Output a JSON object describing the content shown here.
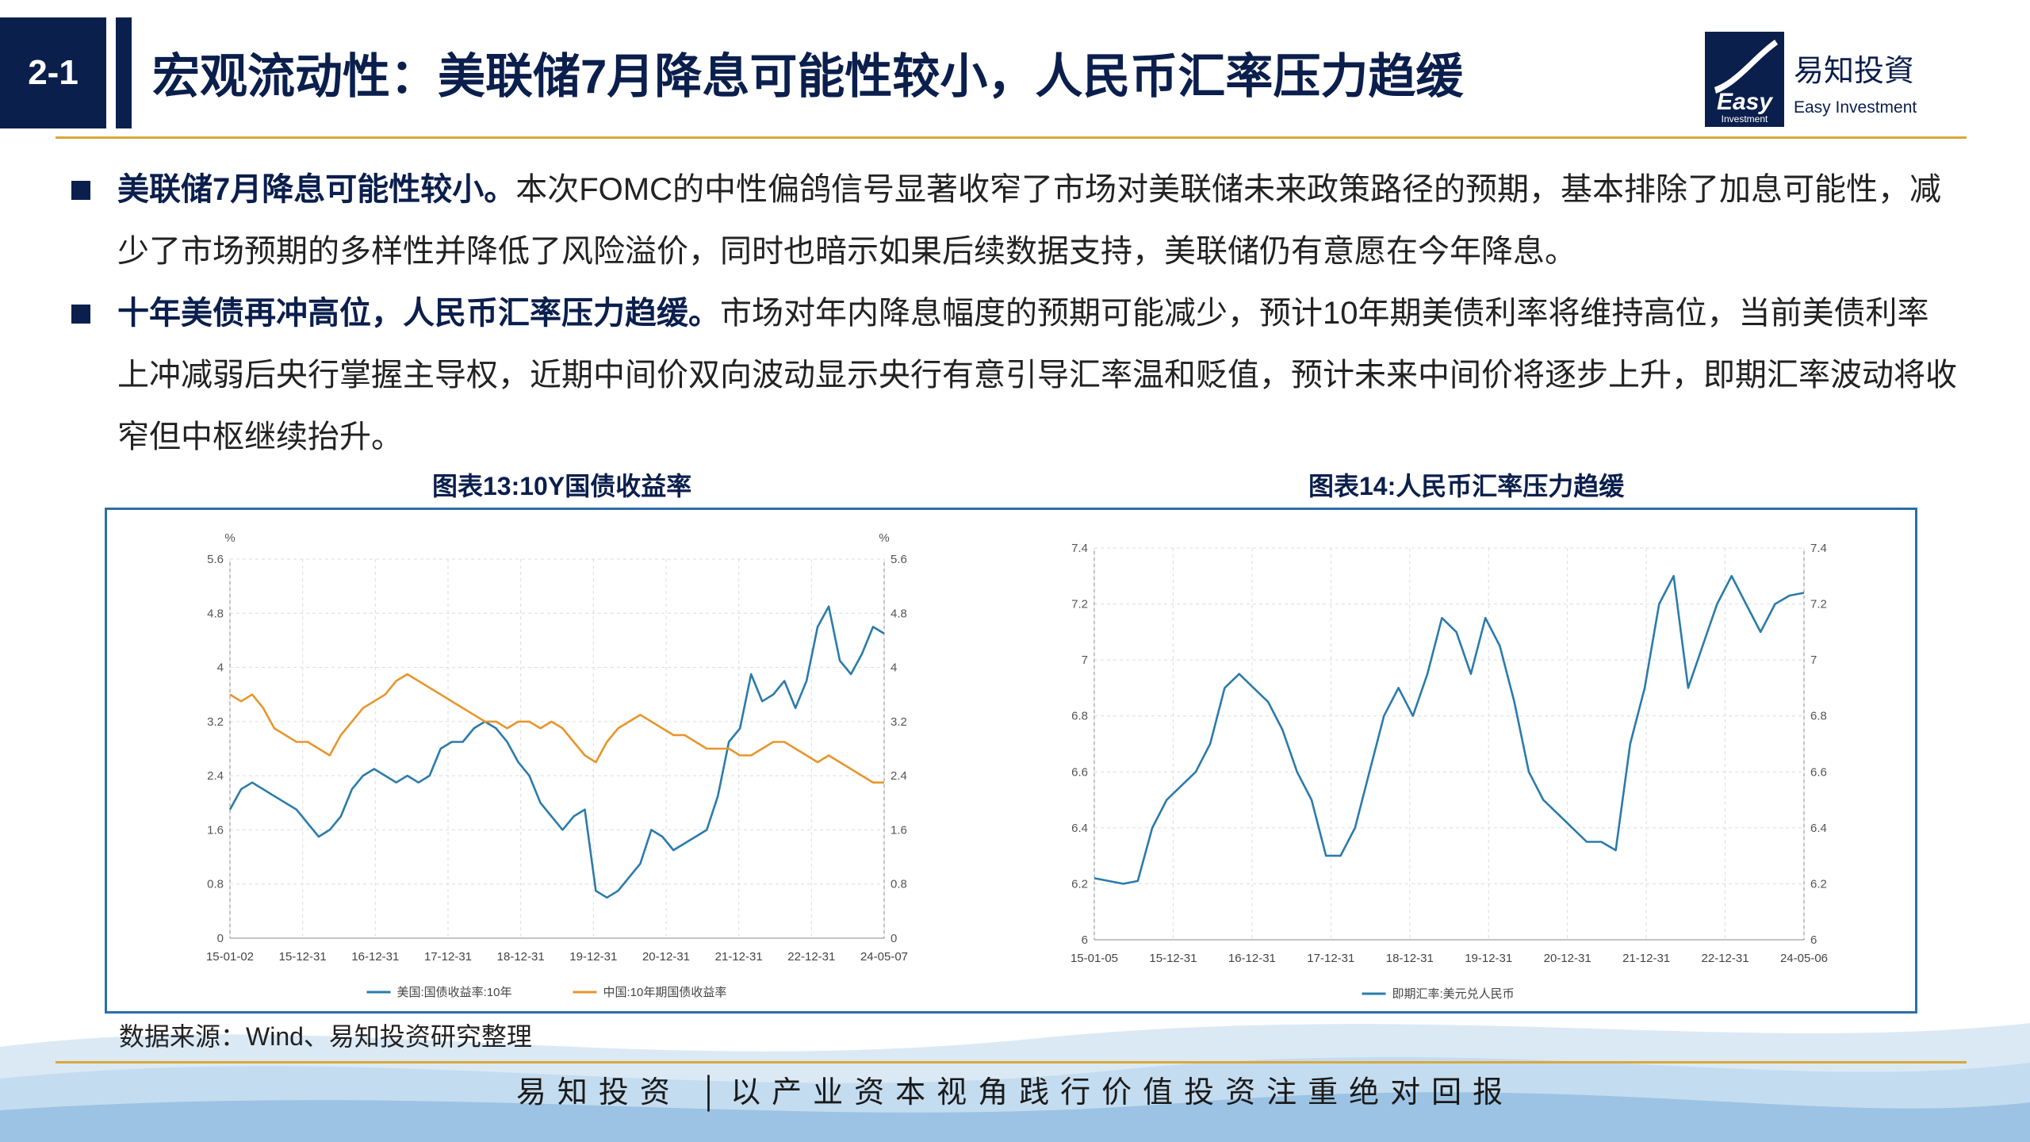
{
  "header": {
    "slide_number": "2-1",
    "title": "宏观流动性：美联储7月降息可能性较小，人民币汇率压力趋缓",
    "logo_cn": "易知投資",
    "logo_en": "Easy Investment",
    "logo_mark_text": "Easy",
    "logo_mark_sub": "Investment"
  },
  "bullets": [
    {
      "lead": "美联储7月降息可能性较小。",
      "text": "本次FOMC的中性偏鸽信号显著收窄了市场对美联储未来政策路径的预期，基本排除了加息可能性，减少了市场预期的多样性并降低了风险溢价，同时也暗示如果后续数据支持，美联储仍有意愿在今年降息。"
    },
    {
      "lead": "十年美债再冲高位，人民币汇率压力趋缓。",
      "text": "市场对年内降息幅度的预期可能减少，预计10年期美债利率将维持高位，当前美债利率上冲减弱后央行掌握主导权，近期中间价双向波动显示央行有意引导汇率温和贬值，预计未来中间价将逐步上升，即期汇率波动将收窄但中枢继续抬升。"
    }
  ],
  "source": "数据来源：Wind、易知投资研究整理",
  "footer": "易知投资 │以产业资本视角践行价值投资注重绝对回报",
  "colors": {
    "navy": "#0b1f4d",
    "gold": "#d7a93a",
    "blue_series": "#2b7bab",
    "orange_series": "#e8952c"
  },
  "chart_data": [
    {
      "type": "line",
      "title": "图表13:10Y国债收益率",
      "ylabel": "%",
      "y2label": "%",
      "ylim": [
        0,
        5.6
      ],
      "yticks": [
        "0",
        "0.8",
        "1.6",
        "2.4",
        "3.2",
        "4",
        "4.8",
        "5.6"
      ],
      "y2ticks": [
        "0",
        "0.8",
        "1.6",
        "2.4",
        "3.2",
        "4",
        "4.8",
        "5.6"
      ],
      "xticks": [
        "15-01-02",
        "15-12-31",
        "16-12-31",
        "17-12-31",
        "18-12-31",
        "19-12-31",
        "20-12-31",
        "21-12-31",
        "22-12-31",
        "24-05-07"
      ],
      "grid": true,
      "legend_position": "bottom",
      "series": [
        {
          "name": "美国:国债收益率:10年",
          "color": "#2b7bab",
          "values": [
            1.9,
            2.2,
            2.3,
            2.2,
            2.1,
            2.0,
            1.9,
            1.7,
            1.5,
            1.6,
            1.8,
            2.2,
            2.4,
            2.5,
            2.4,
            2.3,
            2.4,
            2.3,
            2.4,
            2.8,
            2.9,
            2.9,
            3.1,
            3.2,
            3.1,
            2.9,
            2.6,
            2.4,
            2.0,
            1.8,
            1.6,
            1.8,
            1.9,
            0.7,
            0.6,
            0.7,
            0.9,
            1.1,
            1.6,
            1.5,
            1.3,
            1.4,
            1.5,
            1.6,
            2.1,
            2.9,
            3.1,
            3.9,
            3.5,
            3.6,
            3.8,
            3.4,
            3.8,
            4.6,
            4.9,
            4.1,
            3.9,
            4.2,
            4.6,
            4.5
          ]
        },
        {
          "name": "中国:10年期国债收益率",
          "color": "#e8952c",
          "values": [
            3.6,
            3.5,
            3.6,
            3.4,
            3.1,
            3.0,
            2.9,
            2.9,
            2.8,
            2.7,
            3.0,
            3.2,
            3.4,
            3.5,
            3.6,
            3.8,
            3.9,
            3.8,
            3.7,
            3.6,
            3.5,
            3.4,
            3.3,
            3.2,
            3.2,
            3.1,
            3.2,
            3.2,
            3.1,
            3.2,
            3.1,
            2.9,
            2.7,
            2.6,
            2.9,
            3.1,
            3.2,
            3.3,
            3.2,
            3.1,
            3.0,
            3.0,
            2.9,
            2.8,
            2.8,
            2.8,
            2.7,
            2.7,
            2.8,
            2.9,
            2.9,
            2.8,
            2.7,
            2.6,
            2.7,
            2.6,
            2.5,
            2.4,
            2.3,
            2.3
          ]
        }
      ]
    },
    {
      "type": "line",
      "title": "图表14:人民币汇率压力趋缓",
      "ylim": [
        6,
        7.4
      ],
      "yticks": [
        "6",
        "6.2",
        "6.4",
        "6.6",
        "6.8",
        "7",
        "7.2",
        "7.4"
      ],
      "y2ticks": [
        "6",
        "6.2",
        "6.4",
        "6.6",
        "6.8",
        "7",
        "7.2",
        "7.4"
      ],
      "xticks": [
        "15-01-05",
        "15-12-31",
        "16-12-31",
        "17-12-31",
        "18-12-31",
        "19-12-31",
        "20-12-31",
        "21-12-31",
        "22-12-31",
        "24-05-06"
      ],
      "grid": true,
      "legend_position": "bottom",
      "series": [
        {
          "name": "即期汇率:美元兑人民币",
          "color": "#2b7bab",
          "values": [
            6.22,
            6.21,
            6.2,
            6.21,
            6.4,
            6.5,
            6.55,
            6.6,
            6.7,
            6.9,
            6.95,
            6.9,
            6.85,
            6.75,
            6.6,
            6.5,
            6.3,
            6.3,
            6.4,
            6.6,
            6.8,
            6.9,
            6.8,
            6.95,
            7.15,
            7.1,
            6.95,
            7.15,
            7.05,
            6.85,
            6.6,
            6.5,
            6.45,
            6.4,
            6.35,
            6.35,
            6.32,
            6.7,
            6.9,
            7.2,
            7.3,
            6.9,
            7.05,
            7.2,
            7.3,
            7.2,
            7.1,
            7.2,
            7.23,
            7.24
          ]
        }
      ]
    }
  ]
}
